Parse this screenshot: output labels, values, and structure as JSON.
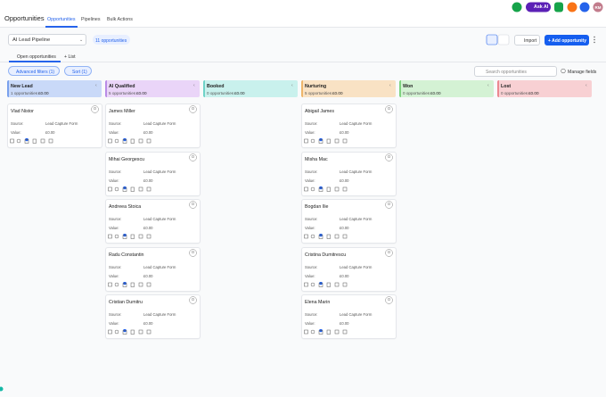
{
  "header": {
    "title": "Opportunities",
    "tabs": [
      "Opportunities",
      "Pipelines",
      "Bulk Actions"
    ],
    "ask_ai": "Ask AI",
    "avatar": "RM"
  },
  "toolbar": {
    "pipeline": "AI Lead Pipeline",
    "count": "11 opportunities",
    "import": "Import",
    "add": "+ Add opportunity"
  },
  "views": {
    "tabs": [
      "Open opportunities",
      "+ List"
    ]
  },
  "filters": {
    "advanced": "Advanced filters (1)",
    "sort": "Sort (1)",
    "search_placeholder": "Search opportunities",
    "manage": "Manage fields"
  },
  "field_labels": {
    "source": "Source:",
    "value": "Value:"
  },
  "columns": [
    {
      "name": "New Lead",
      "count": "1 opportunities",
      "total": "£0.00",
      "color": "#c9d9f8",
      "accent": "#7aa1ec",
      "cards": [
        {
          "name": "Vlad Nistor",
          "source": "Lead Capture Form",
          "value": "£0.00"
        }
      ]
    },
    {
      "name": "AI Qualified",
      "count": "5 opportunities",
      "total": "£0.00",
      "color": "#ead5f8",
      "accent": "#b98ce6",
      "cards": [
        {
          "name": "James Miller",
          "source": "Lead Capture Form",
          "value": "£0.00"
        },
        {
          "name": "Mihai Georgescu",
          "source": "Lead Capture Form",
          "value": "£0.00"
        },
        {
          "name": "Andreea Stoica",
          "source": "Lead Capture Form",
          "value": "£0.00"
        },
        {
          "name": "Radu Constantin",
          "source": "Lead Capture Form",
          "value": "£0.00"
        },
        {
          "name": "Cristian Dumitru",
          "source": "Lead Capture Form",
          "value": "£0.00"
        }
      ]
    },
    {
      "name": "Booked",
      "count": "0 opportunities",
      "total": "£0.00",
      "color": "#c9f1ed",
      "accent": "#6fd3c8",
      "cards": []
    },
    {
      "name": "Nurturing",
      "count": "5 opportunities",
      "total": "£0.00",
      "color": "#f9e2c4",
      "accent": "#eeb56a",
      "cards": [
        {
          "name": "Abigail James",
          "source": "Lead Capture Form",
          "value": "£0.00"
        },
        {
          "name": "Misha Mac",
          "source": "Lead Capture Form",
          "value": "£0.00"
        },
        {
          "name": "Bogdan Ilie",
          "source": "Lead Capture Form",
          "value": "£0.00"
        },
        {
          "name": "Cristina Dumitrescu",
          "source": "Lead Capture Form",
          "value": "£0.00"
        },
        {
          "name": "Elena Marin",
          "source": "Lead Capture Form",
          "value": "£0.00"
        }
      ]
    },
    {
      "name": "Won",
      "count": "0 opportunities",
      "total": "£0.00",
      "color": "#d4f2d4",
      "accent": "#7fd27f",
      "cards": []
    },
    {
      "name": "Lost",
      "count": "0 opportunities",
      "total": "£0.00",
      "color": "#f8d0d3",
      "accent": "#ec8890",
      "cards": []
    }
  ]
}
